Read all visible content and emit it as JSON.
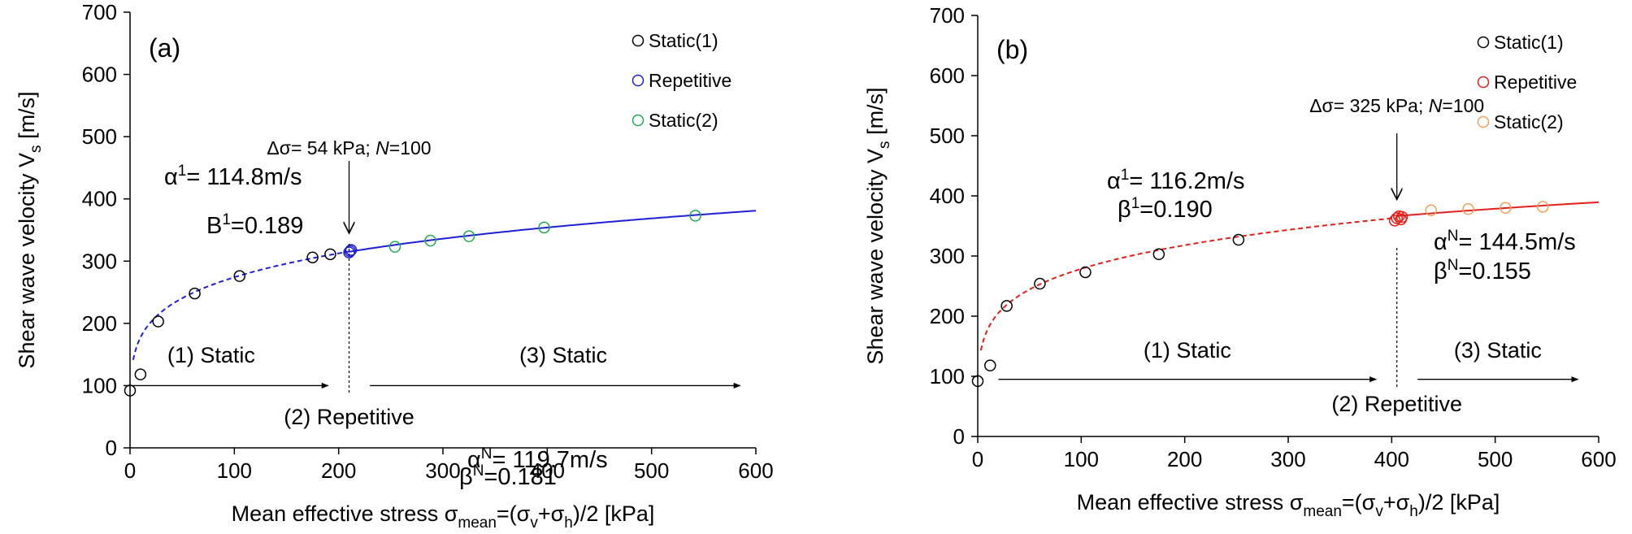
{
  "chart_data": [
    {
      "type": "scatter",
      "panel_label": "(a)",
      "xlabel": "Mean effective stress σmean=(σv+σh)/2 [kPa]",
      "ylabel": "Shear wave velocity Vs [m/s]",
      "xlim": [
        0,
        600
      ],
      "ylim": [
        0,
        700
      ],
      "xticks": [
        0,
        100,
        200,
        300,
        400,
        500,
        600
      ],
      "yticks": [
        0,
        100,
        200,
        300,
        400,
        500,
        600,
        700
      ],
      "grid": false,
      "legend_position": "top-right",
      "series": [
        {
          "name": "Static(1)",
          "color": "#000000",
          "x": [
            0,
            10,
            27,
            62,
            105,
            175,
            192
          ],
          "y": [
            92,
            118,
            203,
            248,
            276,
            306,
            311
          ]
        },
        {
          "name": "Repetitive",
          "color": "#1f1fd6",
          "x": [
            210,
            211,
            212
          ],
          "y": [
            314,
            316,
            318
          ]
        },
        {
          "name": "Static(2)",
          "color": "#21a855",
          "x": [
            254,
            288,
            325,
            397,
            542
          ],
          "y": [
            323,
            333,
            340,
            354,
            373
          ]
        }
      ],
      "fit_curves": [
        {
          "style": "dashed",
          "color": "#1f1fd6",
          "alpha": 114.8,
          "beta": 0.189,
          "x_range": [
            3,
            210
          ]
        },
        {
          "style": "solid",
          "color": "#1f1fd6",
          "alpha": 119.7,
          "beta": 0.181,
          "x_range": [
            210,
            600
          ]
        }
      ],
      "annotations": {
        "arrow_label": "Δσ= 54 kPa; N=100",
        "arrow_x": 210,
        "stage1": "(1) Static",
        "stage2": "(2) Repetitive",
        "stage3": "(3) Static",
        "fit1_alpha": "α1= 114.8m/s",
        "fit1_beta": "B1=0.189",
        "fitN_alpha": "αN= 119.7m/s",
        "fitN_beta": "βN=0.181",
        "arrow_y": 100,
        "stage1_range": [
          0,
          190
        ],
        "stage3_range": [
          230,
          585
        ]
      }
    },
    {
      "type": "scatter",
      "panel_label": "(b)",
      "xlabel": "Mean effective stress σmean=(σv+σh)/2 [kPa]",
      "ylabel": "Shear wave velocity Vs [m/s]",
      "xlim": [
        0,
        600
      ],
      "ylim": [
        0,
        700
      ],
      "xticks": [
        0,
        100,
        200,
        300,
        400,
        500,
        600
      ],
      "yticks": [
        0,
        100,
        200,
        300,
        400,
        500,
        600,
        700
      ],
      "grid": false,
      "legend_position": "top-right",
      "series": [
        {
          "name": "Static(1)",
          "color": "#000000",
          "x": [
            0,
            12,
            28,
            60,
            104,
            175,
            252
          ],
          "y": [
            92,
            118,
            217,
            254,
            273,
            303,
            327
          ]
        },
        {
          "name": "Repetitive",
          "color": "#e0201b",
          "x": [
            403,
            405,
            407,
            409,
            410
          ],
          "y": [
            359,
            363,
            366,
            361,
            365
          ]
        },
        {
          "name": "Static(2)",
          "color": "#f0a058",
          "x": [
            438,
            474,
            510,
            546
          ],
          "y": [
            376,
            378,
            380,
            382
          ]
        }
      ],
      "fit_curves": [
        {
          "style": "dashed",
          "color": "#e0201b",
          "alpha": 116.2,
          "beta": 0.19,
          "x_range": [
            3,
            405
          ]
        },
        {
          "style": "solid",
          "color": "#e0201b",
          "alpha": 144.5,
          "beta": 0.155,
          "x_range": [
            405,
            600
          ]
        }
      ],
      "annotations": {
        "arrow_label": "Δσ= 325 kPa; N=100",
        "arrow_x": 405,
        "stage1": "(1) Static",
        "stage2": "(2) Repetitive",
        "stage3": "(3) Static",
        "fit1_alpha": "α1= 116.2m/s",
        "fit1_beta": "β1=0.190",
        "fitN_alpha": "αN= 144.5m/s",
        "fitN_beta": "βN=0.155",
        "arrow_y": 95,
        "stage1_range": [
          20,
          385
        ],
        "stage3_range": [
          425,
          580
        ]
      }
    }
  ]
}
